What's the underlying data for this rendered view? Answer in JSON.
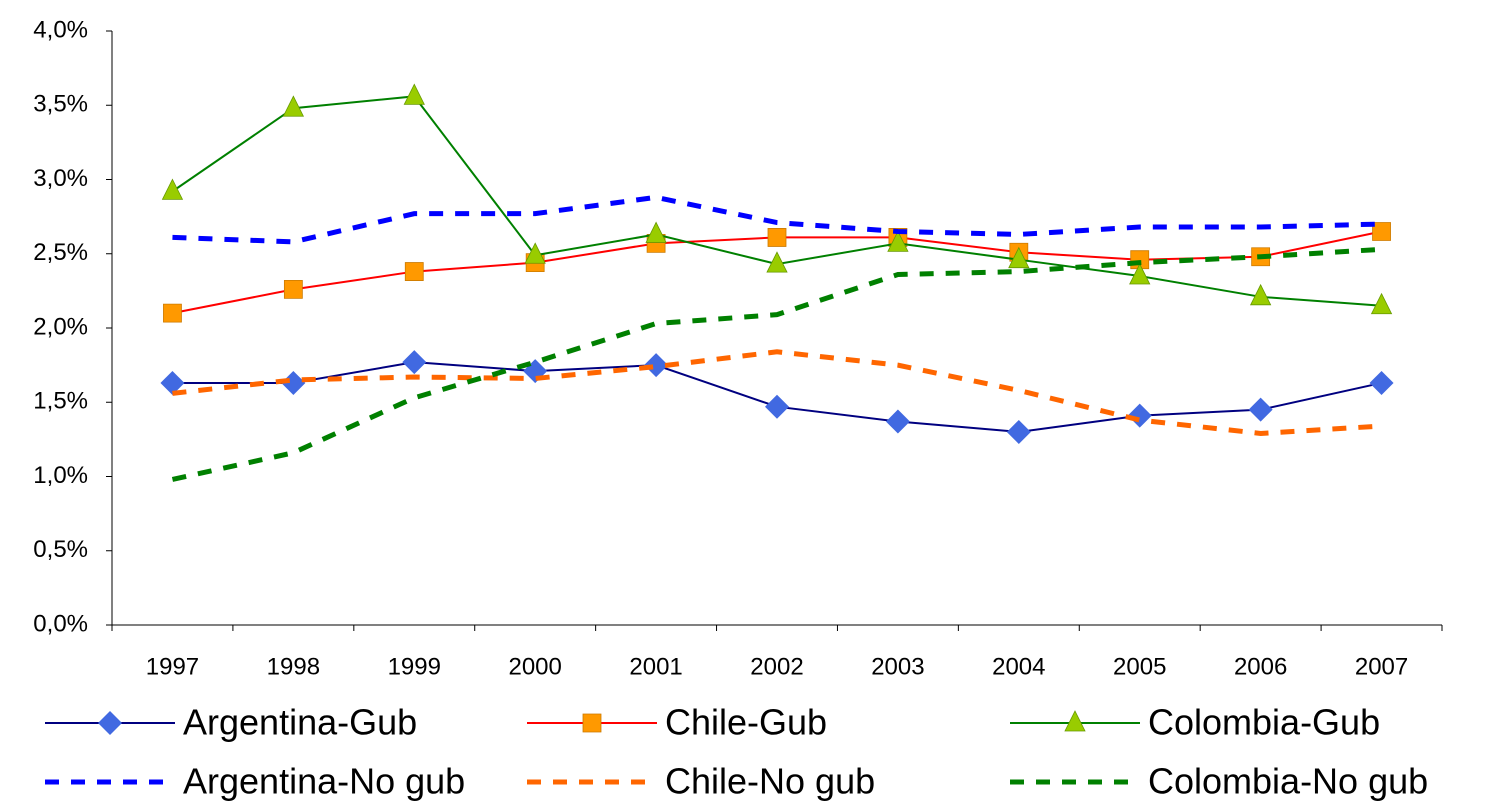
{
  "chart_data": {
    "type": "line",
    "categories": [
      "1997",
      "1998",
      "1999",
      "2000",
      "2001",
      "2002",
      "2003",
      "2004",
      "2005",
      "2006",
      "2007"
    ],
    "ylim": [
      0,
      4.0
    ],
    "yticks": [
      {
        "value": 0,
        "label": "0,0%"
      },
      {
        "value": 0.5,
        "label": "0,5%"
      },
      {
        "value": 1.0,
        "label": "1,0%"
      },
      {
        "value": 1.5,
        "label": "1,5%"
      },
      {
        "value": 2.0,
        "label": "2,0%"
      },
      {
        "value": 2.5,
        "label": "2,5%"
      },
      {
        "value": 3.0,
        "label": "3,0%"
      },
      {
        "value": 3.5,
        "label": "3,5%"
      },
      {
        "value": 4.0,
        "label": "4,0%"
      }
    ],
    "legend": "bottom",
    "series": [
      {
        "name": "Argentina-Gub",
        "color": "#000080",
        "marker": "diamond",
        "marker_color": "#4169E1",
        "dashed": false,
        "values": [
          1.63,
          1.63,
          1.77,
          1.71,
          1.75,
          1.47,
          1.37,
          1.3,
          1.41,
          1.45,
          1.63
        ]
      },
      {
        "name": "Chile-Gub",
        "color": "#FF0000",
        "marker": "square",
        "marker_color": "#FF9900",
        "dashed": false,
        "values": [
          2.1,
          2.26,
          2.38,
          2.44,
          2.57,
          2.61,
          2.61,
          2.51,
          2.46,
          2.48,
          2.65
        ]
      },
      {
        "name": "Colombia-Gub",
        "color": "#008000",
        "marker": "triangle",
        "marker_color": "#99CC00",
        "dashed": false,
        "values": [
          2.92,
          3.48,
          3.56,
          2.49,
          2.63,
          2.43,
          2.57,
          2.46,
          2.35,
          2.21,
          2.15
        ]
      },
      {
        "name": "Argentina-No gub",
        "color": "#0000FF",
        "dashed": true,
        "values": [
          2.61,
          2.58,
          2.77,
          2.77,
          2.88,
          2.71,
          2.65,
          2.63,
          2.68,
          2.68,
          2.7
        ]
      },
      {
        "name": "Chile-No gub",
        "color": "#FF6600",
        "dashed": true,
        "values": [
          1.56,
          1.65,
          1.67,
          1.66,
          1.74,
          1.84,
          1.75,
          1.58,
          1.38,
          1.29,
          1.34
        ]
      },
      {
        "name": "Colombia-No gub",
        "color": "#008000",
        "dashed": true,
        "values": [
          0.98,
          1.16,
          1.53,
          1.77,
          2.03,
          2.09,
          2.36,
          2.38,
          2.44,
          2.48,
          2.53
        ]
      }
    ]
  }
}
